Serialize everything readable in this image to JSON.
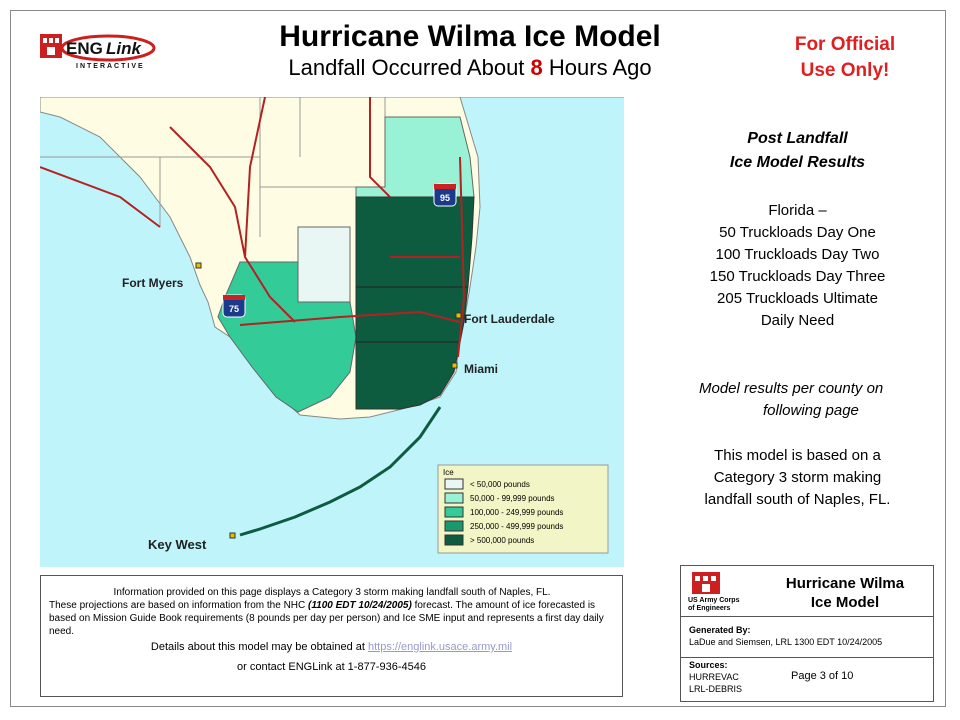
{
  "logo": {
    "letters": "ENG",
    "italic": "Link",
    "sub": "INTERACTIVE"
  },
  "title": {
    "line1": "Hurricane Wilma Ice Model",
    "line2_pre": "Landfall Occurred About ",
    "hours": "8",
    "line2_post": " Hours Ago"
  },
  "official": {
    "line1": "For Official",
    "line2": "Use Only!"
  },
  "results": {
    "head1": "Post Landfall",
    "head2": "Ice Model Results",
    "lines": [
      "Florida –",
      "50 Truckloads Day One",
      "100 Truckloads Day Two",
      "150 Truckloads Day Three",
      "205 Truckloads Ultimate",
      "Daily Need"
    ]
  },
  "note": {
    "line1": "Model results per county on",
    "line2": "following page"
  },
  "basis": {
    "line1": "This model is based on a",
    "line2": "Category 3 storm making",
    "line3": "landfall south of Naples, FL."
  },
  "map": {
    "cities": {
      "fort_myers": "Fort Myers",
      "fort_lauderdale": "Fort Lauderdale",
      "miami": "Miami",
      "key_west": "Key West"
    },
    "shields": {
      "i95": "95",
      "i75": "75"
    },
    "legend": {
      "title": "Ice",
      "items": [
        {
          "label": "< 50,000 pounds",
          "color": "#e8f7f4"
        },
        {
          "label": "50,000 - 99,999 pounds",
          "color": "#99f2d6"
        },
        {
          "label": "100,000 - 249,999 pounds",
          "color": "#33cc99"
        },
        {
          "label": "250,000 - 499,999 pounds",
          "color": "#1a9970"
        },
        {
          "label": "> 500,000 pounds",
          "color": "#0d5c40"
        }
      ]
    },
    "colors": {
      "ocean": "#bff5fa",
      "land": "#fefde3",
      "roads": "#b22222"
    }
  },
  "info": {
    "p1": "Information provided on this page displays a Category 3 storm making landfall south of Naples, FL.",
    "p2a": "These projections are based on information from the NHC ",
    "p2b": "(1100 EDT  10/24/2005)",
    "p2c": " forecast.  The amount of ice forecasted is based on Mission Guide Book requirements (8 pounds per day per person) and Ice SME input and represents a first day daily need.",
    "details_pre": "Details about this model may be obtained at  ",
    "details_link": "https://englink.usace.army.mil",
    "contact": "or  contact ENGLink at 1-877-936-4546"
  },
  "card": {
    "title1": "Hurricane Wilma",
    "title2": "Ice Model",
    "usace1": "US Army Corps",
    "usace2": "of Engineers",
    "generated_label": "Generated By:",
    "generated_value": "LaDue and Siemsen, LRL  1300 EDT  10/24/2005",
    "sources_label": "Sources:",
    "sources": [
      "HURREVAC",
      "LRL-DEBRIS"
    ],
    "page": "Page 3 of 10"
  }
}
